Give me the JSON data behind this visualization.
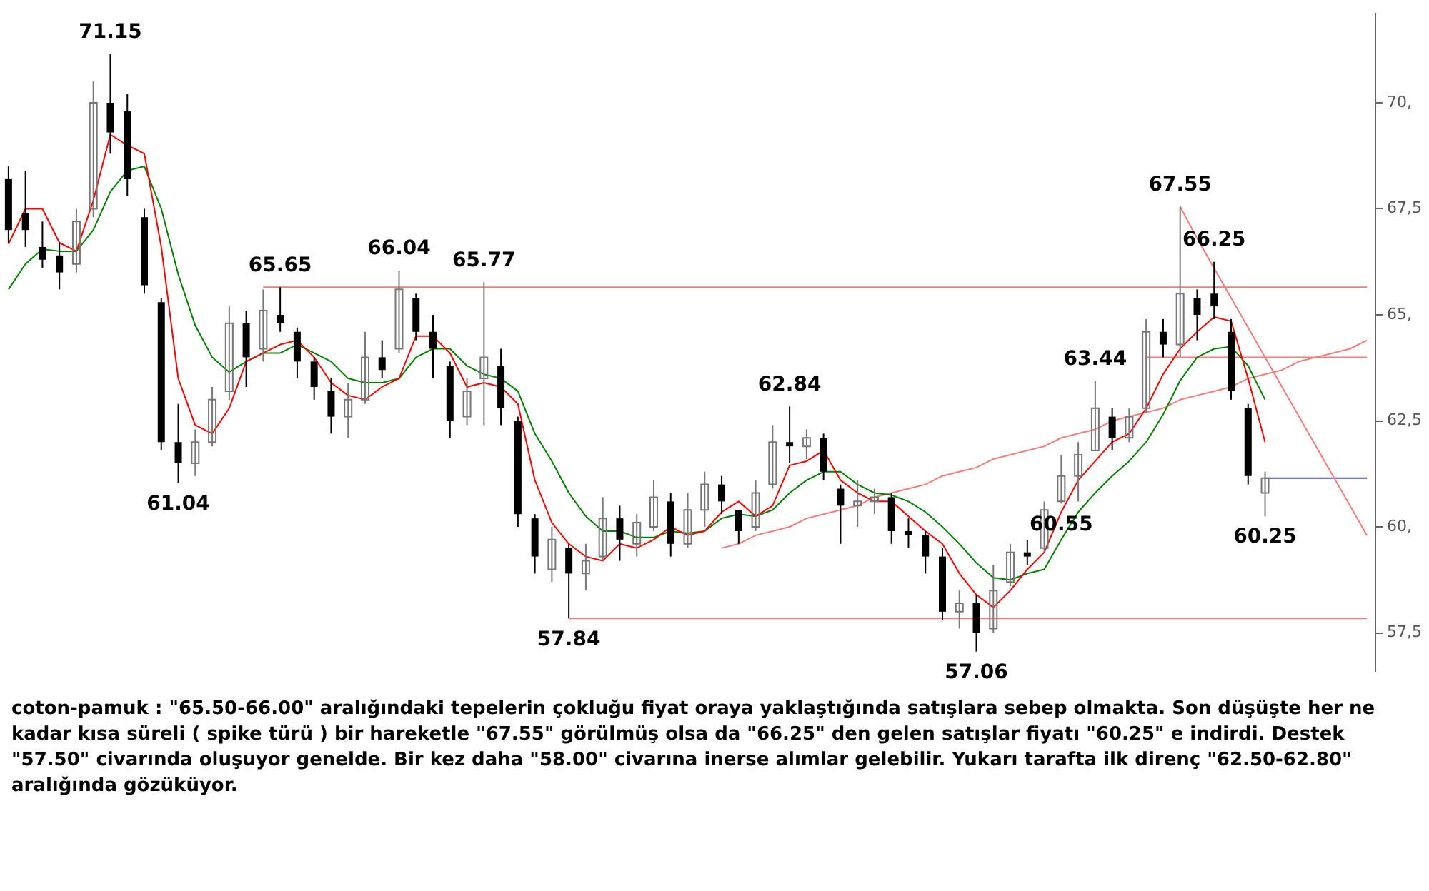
{
  "chart_data": {
    "type": "candlestick",
    "categories": [
      null,
      null,
      null,
      null,
      null,
      null,
      null,
      null,
      null,
      null,
      null,
      null,
      null,
      null,
      null,
      null,
      null,
      null,
      null,
      null,
      null,
      null,
      null,
      null,
      null,
      null,
      null,
      null,
      null,
      null,
      null,
      null,
      null,
      null,
      null,
      null,
      null,
      null,
      null,
      null,
      null,
      null,
      null,
      null,
      null,
      null,
      null,
      null,
      null,
      null,
      null,
      null,
      null,
      null,
      null,
      null,
      null,
      null,
      null,
      null,
      null,
      null,
      null,
      null,
      null,
      null,
      null,
      null,
      null,
      null,
      null,
      null,
      null,
      null,
      null,
      null,
      null,
      null,
      null,
      null,
      null
    ],
    "ohlc": [
      [
        68.2,
        68.5,
        66.7,
        67.0
      ],
      [
        67.4,
        68.4,
        66.6,
        67.0
      ],
      [
        66.6,
        67.2,
        66.1,
        66.3
      ],
      [
        66.4,
        66.7,
        65.6,
        66.0
      ],
      [
        66.2,
        67.5,
        66.0,
        67.2
      ],
      [
        67.5,
        70.5,
        67.3,
        70.0
      ],
      [
        70.0,
        71.15,
        68.8,
        69.3
      ],
      [
        69.8,
        70.2,
        67.8,
        68.2
      ],
      [
        67.3,
        67.5,
        65.5,
        65.7
      ],
      [
        65.3,
        65.4,
        61.8,
        62.0
      ],
      [
        62.0,
        62.9,
        61.04,
        61.5
      ],
      [
        61.5,
        62.3,
        61.2,
        62.0
      ],
      [
        62.0,
        63.3,
        61.9,
        63.0
      ],
      [
        63.2,
        65.2,
        63.0,
        64.8
      ],
      [
        64.8,
        65.1,
        63.3,
        64.0
      ],
      [
        64.2,
        65.6,
        63.9,
        65.1
      ],
      [
        65.0,
        65.65,
        64.6,
        64.8
      ],
      [
        64.6,
        64.7,
        63.5,
        63.9
      ],
      [
        63.9,
        64.0,
        63.0,
        63.3
      ],
      [
        63.2,
        63.5,
        62.2,
        62.6
      ],
      [
        62.6,
        63.4,
        62.1,
        63.0
      ],
      [
        63.0,
        64.6,
        62.9,
        64.0
      ],
      [
        64.0,
        64.4,
        63.5,
        63.7
      ],
      [
        64.2,
        66.04,
        64.1,
        65.6
      ],
      [
        65.4,
        65.5,
        64.4,
        64.6
      ],
      [
        64.6,
        65.0,
        63.5,
        64.2
      ],
      [
        63.8,
        63.9,
        62.1,
        62.5
      ],
      [
        62.6,
        63.5,
        62.4,
        63.2
      ],
      [
        63.5,
        65.77,
        62.4,
        64.0
      ],
      [
        63.8,
        64.2,
        62.4,
        62.8
      ],
      [
        62.5,
        62.6,
        60.0,
        60.3
      ],
      [
        60.2,
        60.3,
        58.9,
        59.3
      ],
      [
        59.0,
        60.0,
        58.7,
        59.7
      ],
      [
        59.5,
        59.6,
        57.84,
        58.9
      ],
      [
        58.9,
        59.6,
        58.5,
        59.2
      ],
      [
        59.3,
        60.7,
        59.2,
        60.2
      ],
      [
        60.2,
        60.5,
        59.2,
        59.7
      ],
      [
        59.6,
        60.3,
        59.3,
        60.1
      ],
      [
        60.0,
        61.1,
        59.9,
        60.7
      ],
      [
        60.6,
        60.8,
        59.3,
        59.6
      ],
      [
        59.6,
        60.8,
        59.5,
        60.4
      ],
      [
        60.4,
        61.3,
        60.0,
        61.0
      ],
      [
        61.0,
        61.2,
        60.3,
        60.6
      ],
      [
        60.4,
        60.4,
        59.6,
        59.9
      ],
      [
        60.0,
        61.1,
        59.9,
        60.8
      ],
      [
        61.0,
        62.4,
        60.9,
        62.0
      ],
      [
        62.0,
        62.84,
        61.5,
        61.9
      ],
      [
        61.9,
        62.3,
        61.6,
        62.1
      ],
      [
        62.1,
        62.2,
        61.1,
        61.3
      ],
      [
        60.9,
        61.0,
        59.6,
        60.5
      ],
      [
        60.5,
        61.1,
        60.0,
        60.6
      ],
      [
        60.6,
        60.9,
        60.3,
        60.7
      ],
      [
        60.7,
        60.8,
        59.6,
        59.9
      ],
      [
        59.9,
        60.2,
        59.5,
        59.8
      ],
      [
        59.8,
        59.9,
        58.9,
        59.3
      ],
      [
        59.3,
        59.5,
        57.8,
        58.0
      ],
      [
        58.0,
        58.5,
        57.6,
        58.2
      ],
      [
        58.2,
        58.4,
        57.06,
        57.5
      ],
      [
        57.6,
        59.1,
        57.5,
        58.5
      ],
      [
        58.7,
        59.6,
        58.6,
        59.4
      ],
      [
        59.4,
        59.7,
        59.1,
        59.3
      ],
      [
        59.5,
        60.6,
        59.4,
        60.4
      ],
      [
        60.6,
        61.7,
        60.55,
        61.2
      ],
      [
        61.2,
        62.0,
        60.6,
        61.7
      ],
      [
        61.8,
        63.44,
        61.8,
        62.8
      ],
      [
        62.6,
        62.8,
        61.8,
        62.1
      ],
      [
        62.1,
        62.8,
        62.0,
        62.6
      ],
      [
        62.8,
        64.9,
        62.7,
        64.6
      ],
      [
        64.6,
        64.9,
        64.0,
        64.3
      ],
      [
        64.3,
        67.55,
        64.0,
        65.5
      ],
      [
        65.4,
        65.6,
        64.4,
        65.0
      ],
      [
        65.5,
        66.25,
        64.9,
        65.2
      ],
      [
        64.6,
        64.9,
        63.0,
        63.2
      ],
      [
        62.8,
        62.9,
        61.0,
        61.2
      ],
      [
        60.8,
        61.3,
        60.25,
        61.15
      ],
      null,
      null,
      null,
      null,
      null,
      null
    ],
    "value_labels": [
      null,
      null,
      null,
      null,
      null,
      null,
      "71.15",
      null,
      null,
      null,
      "61.04",
      null,
      null,
      null,
      null,
      null,
      "65.65",
      null,
      null,
      null,
      null,
      null,
      null,
      "66.04",
      null,
      null,
      null,
      null,
      "65.77",
      null,
      null,
      null,
      null,
      "57.84",
      null,
      null,
      null,
      null,
      null,
      null,
      null,
      null,
      null,
      null,
      null,
      null,
      "62.84",
      null,
      null,
      null,
      null,
      null,
      null,
      null,
      null,
      null,
      null,
      "57.06",
      null,
      null,
      null,
      null,
      "60.55",
      null,
      "63.44",
      null,
      null,
      null,
      null,
      "67.55",
      null,
      "66.25",
      null,
      null,
      "60.25",
      null,
      null,
      null,
      null,
      null,
      null
    ],
    "series": [
      {
        "type": "line",
        "color": "#ff0000",
        "values": [
          66.67,
          67.5,
          67.5,
          66.7,
          66.5,
          67.7,
          69.25,
          69.0,
          68.8,
          66.6,
          63.5,
          62.4,
          62.2,
          62.8,
          63.9,
          64.1,
          64.3,
          64.4,
          64.0,
          63.4,
          63.1,
          63.0,
          63.3,
          63.5,
          64.5,
          64.5,
          64.1,
          63.3,
          63.4,
          63.3,
          62.9,
          61.1,
          60.1,
          59.6,
          59.3,
          59.2,
          59.6,
          59.5,
          59.7,
          60.0,
          59.8,
          59.9,
          60.35,
          60.6,
          60.25,
          60.5,
          61.45,
          61.55,
          61.8,
          61.1,
          60.8,
          60.6,
          60.6,
          60.25,
          59.9,
          59.6,
          58.9,
          58.4,
          58.1,
          58.5,
          59.0,
          59.4,
          60.35,
          61.1,
          61.55,
          62.0,
          62.2,
          62.8,
          63.6,
          64.2,
          64.6,
          64.95,
          64.85,
          63.5,
          62.0,
          null,
          null,
          null,
          null,
          null,
          null
        ]
      },
      {
        "type": "line",
        "color": "#008000",
        "values": [
          65.6,
          66.2,
          66.55,
          66.5,
          66.5,
          67.0,
          67.9,
          68.4,
          68.5,
          67.5,
          65.95,
          64.75,
          64.0,
          63.65,
          63.9,
          64.1,
          64.1,
          64.3,
          64.1,
          63.9,
          63.5,
          63.4,
          63.4,
          63.5,
          64.0,
          64.2,
          64.2,
          63.8,
          63.6,
          63.5,
          63.2,
          62.2,
          61.55,
          60.8,
          60.25,
          59.9,
          59.9,
          59.75,
          59.75,
          59.9,
          59.85,
          59.9,
          60.2,
          60.3,
          60.25,
          60.4,
          60.8,
          61.1,
          61.3,
          61.3,
          61.0,
          60.8,
          60.75,
          60.6,
          60.35,
          60.0,
          59.6,
          59.15,
          58.8,
          58.75,
          58.9,
          59.0,
          59.7,
          60.35,
          60.8,
          61.2,
          61.55,
          62.0,
          62.65,
          63.45,
          64.0,
          64.2,
          64.25,
          63.8,
          63.0,
          null,
          null,
          null,
          null,
          null,
          null
        ]
      },
      {
        "type": "line",
        "color": "#f47c7c",
        "values": [
          null,
          null,
          null,
          null,
          null,
          null,
          null,
          null,
          null,
          null,
          null,
          null,
          null,
          null,
          null,
          null,
          null,
          null,
          null,
          null,
          null,
          null,
          null,
          null,
          null,
          null,
          null,
          null,
          null,
          null,
          null,
          null,
          null,
          null,
          null,
          null,
          null,
          null,
          null,
          null,
          null,
          null,
          null,
          null,
          null,
          null,
          null,
          null,
          null,
          null,
          null,
          null,
          null,
          null,
          null,
          null,
          null,
          null,
          null,
          null,
          null,
          null,
          null,
          null,
          null,
          null,
          null,
          null,
          null,
          67.55,
          66.8,
          66.1,
          65.4,
          64.7,
          64.0,
          63.3,
          62.6,
          61.9,
          61.2,
          60.5,
          59.8
        ]
      },
      {
        "type": "line",
        "color": "#f47c7c",
        "values": [
          null,
          null,
          null,
          null,
          null,
          null,
          null,
          null,
          null,
          null,
          null,
          null,
          null,
          null,
          null,
          null,
          null,
          null,
          null,
          null,
          null,
          null,
          null,
          null,
          null,
          null,
          null,
          null,
          null,
          null,
          null,
          null,
          null,
          null,
          null,
          null,
          null,
          null,
          null,
          null,
          null,
          null,
          59.5,
          59.6,
          59.8,
          59.9,
          60.0,
          60.2,
          60.3,
          60.4,
          60.5,
          60.7,
          60.8,
          60.9,
          61.0,
          61.2,
          61.3,
          61.4,
          61.6,
          61.7,
          61.8,
          61.9,
          62.1,
          62.2,
          62.3,
          62.5,
          62.6,
          62.7,
          62.8,
          63.0,
          63.1,
          63.2,
          63.3,
          63.5,
          63.6,
          63.7,
          63.9,
          64.0,
          64.1,
          64.2,
          64.4
        ]
      },
      {
        "type": "line",
        "color": "#f47c7c",
        "values": [
          null,
          null,
          null,
          null,
          null,
          null,
          null,
          null,
          null,
          null,
          null,
          null,
          null,
          null,
          null,
          65.65,
          65.65,
          65.65,
          65.65,
          65.65,
          65.65,
          65.65,
          65.65,
          65.65,
          65.65,
          65.65,
          65.65,
          65.65,
          65.65,
          65.65,
          65.65,
          65.65,
          65.65,
          65.65,
          65.65,
          65.65,
          65.65,
          65.65,
          65.65,
          65.65,
          65.65,
          65.65,
          65.65,
          65.65,
          65.65,
          65.65,
          65.65,
          65.65,
          65.65,
          65.65,
          65.65,
          65.65,
          65.65,
          65.65,
          65.65,
          65.65,
          65.65,
          65.65,
          65.65,
          65.65,
          65.65,
          65.65,
          65.65,
          65.65,
          65.65,
          65.65,
          65.65,
          65.65,
          65.65,
          65.65,
          65.65,
          65.65,
          65.65,
          65.65,
          65.65,
          65.65,
          65.65,
          65.65,
          65.65,
          65.65,
          65.65
        ]
      },
      {
        "type": "line",
        "color": "#f47c7c",
        "values": [
          null,
          null,
          null,
          null,
          null,
          null,
          null,
          null,
          null,
          null,
          null,
          null,
          null,
          null,
          null,
          null,
          null,
          null,
          null,
          null,
          null,
          null,
          null,
          null,
          null,
          null,
          null,
          null,
          null,
          null,
          null,
          null,
          null,
          57.84,
          57.84,
          57.84,
          57.84,
          57.84,
          57.84,
          57.84,
          57.84,
          57.84,
          57.84,
          57.84,
          57.84,
          57.84,
          57.84,
          57.84,
          57.84,
          57.84,
          57.84,
          57.84,
          57.84,
          57.84,
          57.84,
          57.84,
          57.84,
          57.84,
          57.84,
          57.84,
          57.84,
          57.84,
          57.84,
          57.84,
          57.84,
          57.84,
          57.84,
          57.84,
          57.84,
          57.84,
          57.84,
          57.84,
          57.84,
          57.84,
          57.84,
          57.84,
          57.84,
          57.84,
          57.84,
          57.84,
          57.84
        ]
      },
      {
        "type": "line",
        "color": "#f47c7c",
        "values": [
          null,
          null,
          null,
          null,
          null,
          null,
          null,
          null,
          null,
          null,
          null,
          null,
          null,
          null,
          null,
          null,
          null,
          null,
          null,
          null,
          null,
          null,
          null,
          null,
          null,
          null,
          null,
          null,
          null,
          null,
          null,
          null,
          null,
          null,
          null,
          null,
          null,
          null,
          null,
          null,
          null,
          null,
          null,
          null,
          null,
          null,
          null,
          null,
          null,
          null,
          null,
          null,
          null,
          null,
          null,
          null,
          null,
          null,
          null,
          null,
          null,
          null,
          null,
          null,
          null,
          null,
          null,
          64.0,
          64.0,
          64.0,
          64.0,
          64.0,
          64.0,
          64.0,
          64.0,
          64.0,
          64.0,
          64.0,
          64.0,
          64.0,
          64.0
        ]
      },
      {
        "type": "line",
        "color": "#5555bb",
        "values": [
          null,
          null,
          null,
          null,
          null,
          null,
          null,
          null,
          null,
          null,
          null,
          null,
          null,
          null,
          null,
          null,
          null,
          null,
          null,
          null,
          null,
          null,
          null,
          null,
          null,
          null,
          null,
          null,
          null,
          null,
          null,
          null,
          null,
          null,
          null,
          null,
          null,
          null,
          null,
          null,
          null,
          null,
          null,
          null,
          null,
          null,
          null,
          null,
          null,
          null,
          null,
          null,
          null,
          null,
          null,
          null,
          null,
          null,
          null,
          null,
          null,
          null,
          null,
          null,
          null,
          null,
          null,
          null,
          null,
          null,
          null,
          null,
          null,
          null,
          61.15,
          61.15,
          61.15,
          61.15,
          61.15,
          61.15,
          61.15
        ]
      }
    ],
    "ylim": [
      56.6,
      72.1
    ],
    "yticks": [
      {
        "value": 57.5,
        "label": "57,5"
      },
      {
        "value": 60,
        "label": "60,"
      },
      {
        "value": 62.5,
        "label": "62,5"
      },
      {
        "value": 65,
        "label": "65,"
      },
      {
        "value": 67.5,
        "label": "67,5"
      },
      {
        "value": 70,
        "label": "70,"
      }
    ],
    "tick_labels": "y",
    "annotations": [
      "coton-pamuk : \"65.50-66.00\" aralığındaki tepelerin çokluğu fiyat oraya yaklaştığında satışlara sebep olmakta. Son düşüşte her ne kadar kısa süreli ( spike türü ) bir hareketle \"67.55\" görülmüş olsa da \"66.25\" den gelen satışlar fiyatı \"60.25\" e indirdi. Destek \"57.50\" civarında oluşuyor genelde. Bir kez daha \"58.00\" civarına inerse alımlar gelebilir. Yukarı tarafta ilk direnç \"62.50-62.80\" aralığında gözüküyor."
    ]
  }
}
